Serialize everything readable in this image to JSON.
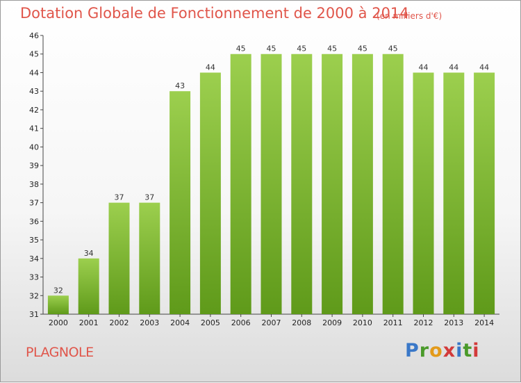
{
  "header": {
    "title": "Dotation Globale de Fonctionnement de 2000 à 2014",
    "unit": "(en milliers d'€)"
  },
  "footer": {
    "commune": "PLAGNOLE",
    "logo": [
      "P",
      "r",
      "o",
      "x",
      "i",
      "t",
      "i"
    ]
  },
  "colors": {
    "bar_top": "#9ccf4e",
    "bar_bottom": "#5f9a1a",
    "title": "#e0554a"
  },
  "chart_data": {
    "type": "bar",
    "title": "Dotation Globale de Fonctionnement de 2000 à 2014",
    "categories": [
      "2000",
      "2001",
      "2002",
      "2003",
      "2004",
      "2005",
      "2006",
      "2007",
      "2008",
      "2009",
      "2010",
      "2011",
      "2012",
      "2013",
      "2014"
    ],
    "values": [
      32,
      34,
      37,
      37,
      43,
      44,
      45,
      45,
      45,
      45,
      45,
      45,
      44,
      44,
      44
    ],
    "data_labels": [
      "32",
      "34",
      "37",
      "37",
      "43",
      "44",
      "45",
      "45",
      "45",
      "45",
      "45",
      "45",
      "44",
      "44",
      "44"
    ],
    "xlabel": "",
    "ylabel": "",
    "ylim": [
      31,
      46
    ],
    "yticks": [
      31,
      32,
      33,
      34,
      35,
      36,
      37,
      38,
      39,
      40,
      41,
      42,
      43,
      44,
      45,
      46
    ],
    "grid": false,
    "legend": "none"
  }
}
